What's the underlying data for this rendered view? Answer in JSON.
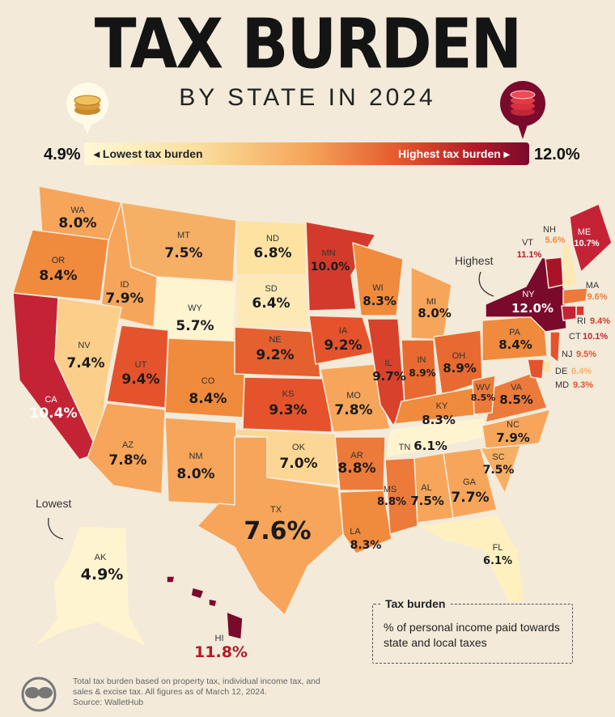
{
  "header": {
    "title": "TAX BURDEN",
    "subtitle": "BY STATE IN 2024"
  },
  "scale": {
    "min_value": "4.9%",
    "max_value": "12.0%",
    "low_label": "◂ Lowest tax burden",
    "high_label": "Highest tax burden ▸"
  },
  "callouts": {
    "highest": "Highest",
    "lowest": "Lowest"
  },
  "legend": {
    "title": "Tax burden",
    "description": "% of personal income paid towards state and local taxes"
  },
  "footnote": {
    "line1": "Total tax burden based on property tax, individual income tax, and sales & excise tax. All figures as of March 12, 2024.",
    "line2": "Source: WalletHub"
  },
  "colors": {
    "background": "#f3ead9",
    "scale_low": "#fff7d6",
    "scale_high": "#7a0a2c"
  },
  "states": {
    "WA": {
      "abbr": "WA",
      "value": "8.0%"
    },
    "OR": {
      "abbr": "OR",
      "value": "8.4%"
    },
    "CA": {
      "abbr": "CA",
      "value": "10.4%"
    },
    "ID": {
      "abbr": "ID",
      "value": "7.9%"
    },
    "NV": {
      "abbr": "NV",
      "value": "7.4%"
    },
    "MT": {
      "abbr": "MT",
      "value": "7.5%"
    },
    "WY": {
      "abbr": "WY",
      "value": "5.7%"
    },
    "UT": {
      "abbr": "UT",
      "value": "9.4%"
    },
    "AZ": {
      "abbr": "AZ",
      "value": "7.8%"
    },
    "CO": {
      "abbr": "CO",
      "value": "8.4%"
    },
    "NM": {
      "abbr": "NM",
      "value": "8.0%"
    },
    "ND": {
      "abbr": "ND",
      "value": "6.8%"
    },
    "SD": {
      "abbr": "SD",
      "value": "6.4%"
    },
    "NE": {
      "abbr": "NE",
      "value": "9.2%"
    },
    "KS": {
      "abbr": "KS",
      "value": "9.3%"
    },
    "OK": {
      "abbr": "OK",
      "value": "7.0%"
    },
    "TX": {
      "abbr": "TX",
      "value": "7.6%"
    },
    "MN": {
      "abbr": "MN",
      "value": "10.0%"
    },
    "IA": {
      "abbr": "IA",
      "value": "9.2%"
    },
    "MO": {
      "abbr": "MO",
      "value": "7.8%"
    },
    "AR": {
      "abbr": "AR",
      "value": "8.8%"
    },
    "LA": {
      "abbr": "LA",
      "value": "8.3%"
    },
    "WI": {
      "abbr": "WI",
      "value": "8.3%"
    },
    "IL": {
      "abbr": "IL",
      "value": "9.7%"
    },
    "MI": {
      "abbr": "MI",
      "value": "8.0%"
    },
    "IN": {
      "abbr": "IN",
      "value": "8.9%"
    },
    "OH": {
      "abbr": "OH",
      "value": "8.9%"
    },
    "KY": {
      "abbr": "KY",
      "value": "8.3%"
    },
    "TN": {
      "abbr": "TN",
      "value": "6.1%"
    },
    "MS": {
      "abbr": "MS",
      "value": "8.8%"
    },
    "AL": {
      "abbr": "AL",
      "value": "7.5%"
    },
    "GA": {
      "abbr": "GA",
      "value": "7.7%"
    },
    "FL": {
      "abbr": "FL",
      "value": "6.1%"
    },
    "SC": {
      "abbr": "SC",
      "value": "7.5%"
    },
    "NC": {
      "abbr": "NC",
      "value": "7.9%"
    },
    "VA": {
      "abbr": "VA",
      "value": "8.5%"
    },
    "WV": {
      "abbr": "WV",
      "value": "8.5%"
    },
    "PA": {
      "abbr": "PA",
      "value": "8.4%"
    },
    "NY": {
      "abbr": "NY",
      "value": "12.0%"
    },
    "VT": {
      "abbr": "VT",
      "value": "11.1%"
    },
    "NH": {
      "abbr": "NH",
      "value": "5.6%"
    },
    "ME": {
      "abbr": "ME",
      "value": "10.7%"
    },
    "MA": {
      "abbr": "MA",
      "value": "9.6%"
    },
    "RI": {
      "abbr": "RI",
      "value": "9.4%"
    },
    "CT": {
      "abbr": "CT",
      "value": "10.1%"
    },
    "NJ": {
      "abbr": "NJ",
      "value": "9.5%"
    },
    "DE": {
      "abbr": "DE",
      "value": "6.4%"
    },
    "MD": {
      "abbr": "MD",
      "value": "9.3%"
    },
    "AK": {
      "abbr": "AK",
      "value": "4.9%"
    },
    "HI": {
      "abbr": "HI",
      "value": "11.8%"
    }
  }
}
